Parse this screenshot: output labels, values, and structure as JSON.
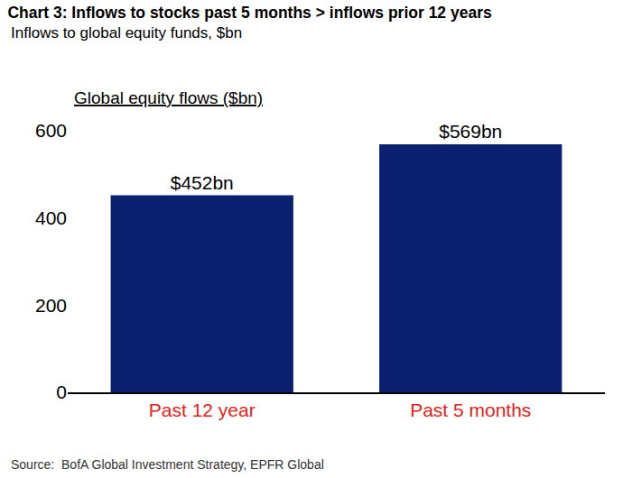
{
  "chart_data": {
    "type": "bar",
    "title": "Chart 3: Inflows to stocks past 5 months > inflows prior 12 years",
    "subtitle": "Inflows to global equity funds, $bn",
    "ylabel": "Global equity flows ($bn)",
    "source": "Source:  BofA Global Investment Strategy, EPFR Global",
    "categories": [
      "Past 12 year",
      "Past 5 months"
    ],
    "values": [
      452,
      569
    ],
    "value_labels": [
      "$452bn",
      "$569bn"
    ],
    "color": "#0b2170",
    "ylim": [
      0,
      600
    ],
    "yticks": [
      0,
      200,
      400,
      600
    ],
    "grid": false,
    "data_labels": true
  }
}
